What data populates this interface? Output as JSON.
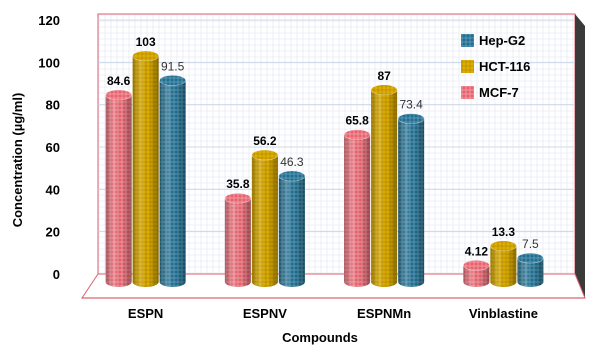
{
  "chart_data": {
    "type": "bar",
    "title": "",
    "xlabel": "Compounds",
    "ylabel": "Concentration (µg/ml)",
    "ylim": [
      0,
      120
    ],
    "yticks": [
      0,
      20,
      40,
      60,
      80,
      100,
      120
    ],
    "grid": true,
    "legend_position": "top-right",
    "categories": [
      "ESPN",
      "ESPNV",
      "ESPNMn",
      "Vinblastine"
    ],
    "series": [
      {
        "name": "MCF-7",
        "color": "#e8626e",
        "values": [
          84.6,
          35.8,
          65.8,
          4.12
        ],
        "labels": [
          "84.6",
          "35.8",
          "65.8",
          "4.12"
        ],
        "label_color": "#000000"
      },
      {
        "name": "HCT-116",
        "color": "#e0b000",
        "values": [
          103,
          56.2,
          87,
          13.3
        ],
        "labels": [
          "103",
          "56.2",
          "87",
          "13.3"
        ],
        "label_color": "#000000"
      },
      {
        "name": "Hep-G2",
        "color": "#1f6f92",
        "values": [
          91.5,
          46.3,
          73.4,
          7.5
        ],
        "labels": [
          "91.5",
          "46.3",
          "73.4",
          "7.5"
        ],
        "label_color": "#333333"
      }
    ],
    "legend_order": [
      "Hep-G2",
      "HCT-116",
      "MCF-7"
    ]
  }
}
